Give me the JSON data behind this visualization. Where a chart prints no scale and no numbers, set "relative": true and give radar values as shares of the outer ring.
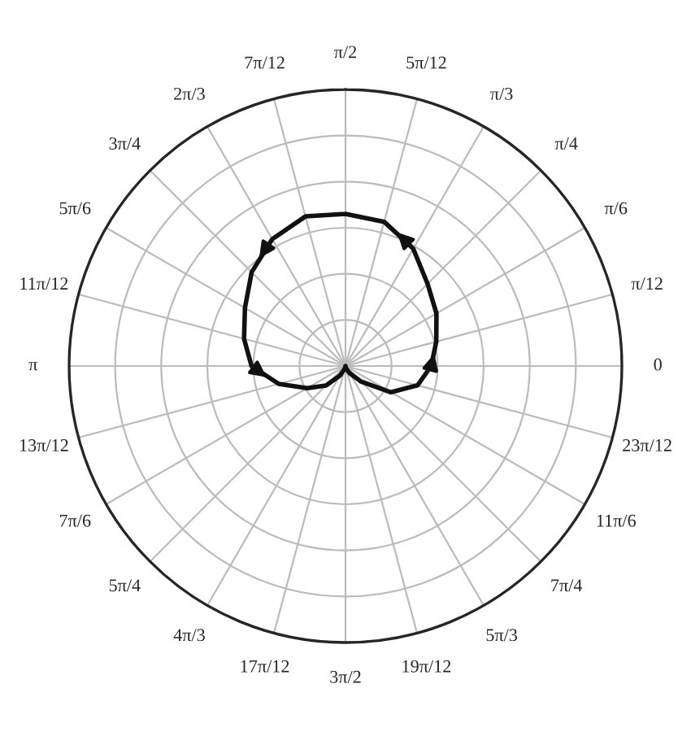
{
  "chart_data": {
    "type": "radar",
    "relative": true,
    "grid": true,
    "categories": [
      "π/2",
      "5π/12",
      "π/3",
      "π/4",
      "π/6",
      "π/12",
      "0",
      "23π/12",
      "11π/6",
      "7π/4",
      "5π/3",
      "19π/12",
      "3π/2",
      "17π/12",
      "4π/3",
      "5π/4",
      "7π/6",
      "13π/12",
      "π",
      "11π/12",
      "5π/6",
      "3π/4",
      "2π/3",
      "7π/12"
    ],
    "series": [
      {
        "color": "#111111",
        "values": [
          0.55,
          0.54,
          0.49,
          0.42,
          0.38,
          0.34,
          0.31,
          0.27,
          0.19,
          0.08,
          0.03,
          0.01,
          0,
          0.01,
          0.04,
          0.1,
          0.16,
          0.25,
          0.34,
          0.38,
          0.42,
          0.48,
          0.53,
          0.56
        ]
      }
    ]
  }
}
